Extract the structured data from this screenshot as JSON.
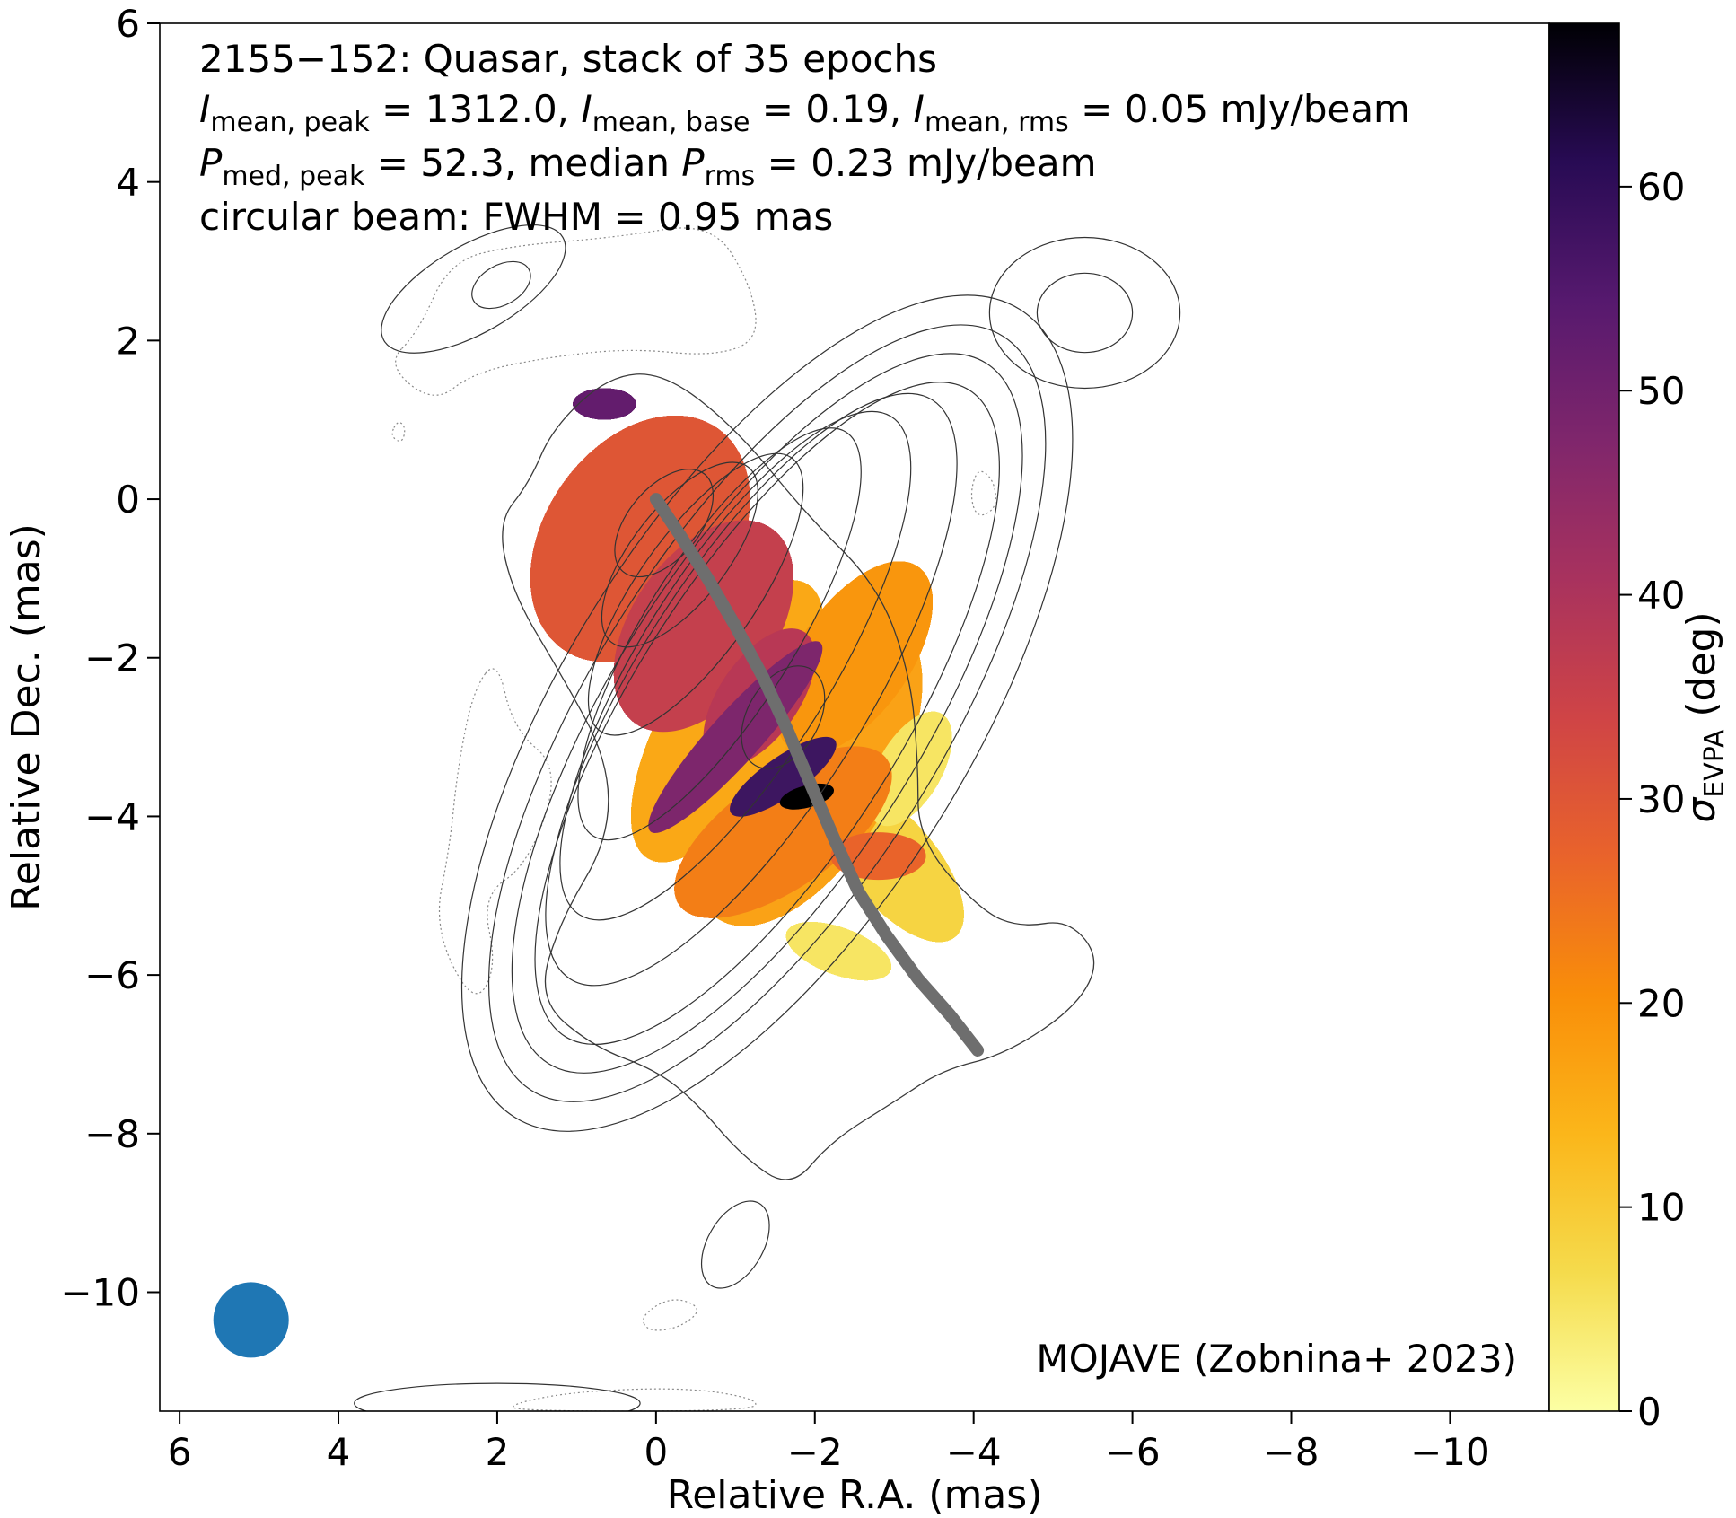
{
  "chart_data": {
    "type": "heatmap",
    "title": "2155−152: Quasar, stack of 35 epochs",
    "annotations": {
      "line2": {
        "a_sym": "I",
        "a_sub": "mean, peak",
        "a_val": " = 1312.0, ",
        "b_sym": "I",
        "b_sub": "mean, base",
        "b_val": " = 0.19, ",
        "c_sym": "I",
        "c_sub": "mean, rms",
        "c_val": " = 0.05 mJy/beam"
      },
      "line3": {
        "a_sym": "P",
        "a_sub": "med, peak",
        "a_val": " = 52.3, median ",
        "b_sym": "P",
        "b_sub": "rms",
        "b_val": " = 0.23 mJy/beam"
      },
      "line4": "circular beam: FWHM = 0.95 mas",
      "credit": "MOJAVE (Zobnina+ 2023)"
    },
    "xlabel": "Relative R.A. (mas)",
    "ylabel": "Relative Dec. (mas)",
    "colorbar_label": {
      "sym": "σ",
      "sub": "EVPA",
      "rest": " (deg)"
    },
    "x_range": [
      6.25,
      -11.25
    ],
    "y_range": [
      -11.5,
      6.0
    ],
    "x_ticks": [
      6,
      4,
      2,
      0,
      -2,
      -4,
      -6,
      -8,
      -10
    ],
    "x_tick_labels": [
      "6",
      "4",
      "2",
      "0",
      "−2",
      "−4",
      "−6",
      "−8",
      "−10"
    ],
    "y_ticks": [
      6,
      4,
      2,
      0,
      -2,
      -4,
      -6,
      -8,
      -10
    ],
    "y_tick_labels": [
      "6",
      "4",
      "2",
      "0",
      "−2",
      "−4",
      "−6",
      "−8",
      "−10"
    ],
    "colorbar_range": [
      0,
      68
    ],
    "colorbar_ticks": [
      0,
      10,
      20,
      30,
      40,
      50,
      60
    ],
    "colorbar_tick_labels": [
      "0",
      "10",
      "20",
      "30",
      "40",
      "50",
      "60"
    ],
    "colormap": "inferno_r",
    "ridge_line": {
      "color": "#6e6e6e",
      "points": [
        [
          0,
          0
        ],
        [
          -0.3,
          -0.45
        ],
        [
          -0.65,
          -1.0
        ],
        [
          -1.0,
          -1.6
        ],
        [
          -1.35,
          -2.25
        ],
        [
          -1.65,
          -2.9
        ],
        [
          -1.95,
          -3.6
        ],
        [
          -2.25,
          -4.3
        ],
        [
          -2.55,
          -4.95
        ],
        [
          -2.9,
          -5.5
        ],
        [
          -3.3,
          -6.05
        ],
        [
          -3.7,
          -6.5
        ],
        [
          -4.05,
          -6.95
        ]
      ]
    },
    "beam": {
      "ra": 5.1,
      "dec": -10.35,
      "fwhm": 0.95,
      "color": "#1f77b4"
    },
    "evpa_regions": [
      {
        "ra": -3.0,
        "dec": -4.6,
        "a": 1.2,
        "b": 0.55,
        "angle": 50,
        "value": 8
      },
      {
        "ra": -2.3,
        "dec": -5.7,
        "a": 0.7,
        "b": 0.3,
        "angle": 20,
        "value": 5
      },
      {
        "ra": -1.9,
        "dec": -3.4,
        "a": 2.2,
        "b": 1.1,
        "angle": -60,
        "value": 17
      },
      {
        "ra": -0.9,
        "dec": -2.8,
        "a": 2.0,
        "b": 0.8,
        "angle": -60,
        "value": 16
      },
      {
        "ra": -3.2,
        "dec": -3.4,
        "a": 0.8,
        "b": 0.4,
        "angle": -60,
        "value": 5
      },
      {
        "ra": -1.6,
        "dec": -4.2,
        "a": 1.6,
        "b": 0.7,
        "angle": -35,
        "value": 23
      },
      {
        "ra": -2.5,
        "dec": -2.0,
        "a": 1.4,
        "b": 0.7,
        "angle": -55,
        "value": 19
      },
      {
        "ra": -2.8,
        "dec": -4.5,
        "a": 0.6,
        "b": 0.3,
        "angle": 0,
        "value": 27
      },
      {
        "ra": 0.2,
        "dec": -0.5,
        "a": 1.7,
        "b": 1.2,
        "angle": -55,
        "value": 30
      },
      {
        "ra": -0.6,
        "dec": -1.6,
        "a": 1.5,
        "b": 0.9,
        "angle": -55,
        "value": 36
      },
      {
        "ra": -1.3,
        "dec": -2.5,
        "a": 1.0,
        "b": 0.5,
        "angle": -55,
        "value": 38
      },
      {
        "ra": -1.0,
        "dec": -3.0,
        "a": 1.6,
        "b": 0.32,
        "angle": -48,
        "value": 48
      },
      {
        "ra": -1.6,
        "dec": -3.5,
        "a": 0.8,
        "b": 0.25,
        "angle": -35,
        "value": 58
      },
      {
        "ra": -1.9,
        "dec": -3.75,
        "a": 0.35,
        "b": 0.14,
        "angle": -15,
        "value": 68
      },
      {
        "ra": 0.65,
        "dec": 1.2,
        "a": 0.4,
        "b": 0.2,
        "angle": 0,
        "value": 52
      }
    ],
    "contour_levels": [
      {
        "ra": -1.4,
        "dec": -2.7,
        "a": 6.0,
        "b": 2.55,
        "angle": -58
      },
      {
        "ra": -1.4,
        "dec": -2.7,
        "a": 5.6,
        "b": 2.2,
        "angle": -58
      },
      {
        "ra": -1.4,
        "dec": -2.7,
        "a": 5.2,
        "b": 1.95,
        "angle": -58
      },
      {
        "ra": -1.4,
        "dec": -2.7,
        "a": 4.8,
        "b": 1.7,
        "angle": -58
      },
      {
        "ra": -1.2,
        "dec": -2.4,
        "a": 4.3,
        "b": 1.45,
        "angle": -58
      },
      {
        "ra": -1.0,
        "dec": -2.1,
        "a": 3.7,
        "b": 1.2,
        "angle": -58
      },
      {
        "ra": -0.8,
        "dec": -1.7,
        "a": 3.0,
        "b": 0.95,
        "angle": -58
      },
      {
        "ra": -0.5,
        "dec": -1.2,
        "a": 2.1,
        "b": 0.75,
        "angle": -55
      },
      {
        "ra": -0.3,
        "dec": -0.7,
        "a": 1.4,
        "b": 0.6,
        "angle": -52
      },
      {
        "ra": -0.1,
        "dec": -0.3,
        "a": 0.8,
        "b": 0.45,
        "angle": -50
      },
      {
        "ra": -1.6,
        "dec": -2.75,
        "a": 0.7,
        "b": 0.45,
        "angle": -60
      },
      {
        "ra": -5.4,
        "dec": 2.35,
        "a": 1.2,
        "b": 0.95,
        "angle": 0
      },
      {
        "ra": -5.4,
        "dec": 2.35,
        "a": 0.6,
        "b": 0.5,
        "angle": 0
      },
      {
        "ra": 2.3,
        "dec": 2.65,
        "a": 1.3,
        "b": 0.55,
        "angle": -30
      },
      {
        "ra": 1.95,
        "dec": 2.7,
        "a": 0.4,
        "b": 0.25,
        "angle": -30
      },
      {
        "ra": -1.0,
        "dec": -9.4,
        "a": 0.6,
        "b": 0.35,
        "angle": -60
      },
      {
        "ra": 2.0,
        "dec": -11.4,
        "a": 1.8,
        "b": 0.25,
        "angle": 0
      }
    ],
    "outer_contour": [
      [
        1.6,
        0.2
      ],
      [
        1.3,
        0.9
      ],
      [
        0.6,
        1.55
      ],
      [
        -0.1,
        1.6
      ],
      [
        -1.0,
        0.9
      ],
      [
        -1.9,
        -0.2
      ],
      [
        -2.8,
        -1.1
      ],
      [
        -3.2,
        -2.2
      ],
      [
        -3.3,
        -3.3
      ],
      [
        -3.3,
        -4.3
      ],
      [
        -4.1,
        -5.2
      ],
      [
        -4.6,
        -5.4
      ],
      [
        -5.2,
        -5.3
      ],
      [
        -5.6,
        -5.8
      ],
      [
        -5.3,
        -6.4
      ],
      [
        -4.4,
        -7.0
      ],
      [
        -3.6,
        -7.2
      ],
      [
        -3.0,
        -7.6
      ],
      [
        -2.2,
        -8.1
      ],
      [
        -1.7,
        -8.7
      ],
      [
        -1.1,
        -8.3
      ],
      [
        -0.5,
        -7.6
      ],
      [
        0.0,
        -7.2
      ],
      [
        0.8,
        -6.9
      ],
      [
        1.5,
        -6.3
      ],
      [
        1.2,
        -5.3
      ],
      [
        0.6,
        -4.3
      ],
      [
        0.6,
        -3.3
      ],
      [
        1.2,
        -2.2
      ],
      [
        1.8,
        -1.2
      ],
      [
        2.0,
        -0.3
      ]
    ],
    "dotted_regions": [
      [
        [
          3.0,
          2.1
        ],
        [
          2.6,
          3.0
        ],
        [
          1.8,
          3.2
        ],
        [
          0.5,
          3.3
        ],
        [
          -0.7,
          3.5
        ],
        [
          -1.2,
          2.7
        ],
        [
          -1.3,
          2.0
        ],
        [
          -0.7,
          1.8
        ],
        [
          0.3,
          1.9
        ],
        [
          1.3,
          1.8
        ],
        [
          2.3,
          1.6
        ],
        [
          2.8,
          1.2
        ],
        [
          3.4,
          1.7
        ]
      ],
      [
        [
          2.0,
          -2.0
        ],
        [
          1.8,
          -2.9
        ],
        [
          1.2,
          -3.4
        ],
        [
          1.6,
          -4.6
        ],
        [
          2.2,
          -5.0
        ],
        [
          2.0,
          -5.9
        ],
        [
          2.3,
          -6.4
        ],
        [
          2.8,
          -5.4
        ],
        [
          2.6,
          -4.4
        ],
        [
          2.5,
          -3.4
        ],
        [
          2.3,
          -2.4
        ]
      ],
      [
        [
          -4.05,
          0.4
        ],
        [
          -4.25,
          0.25
        ],
        [
          -4.3,
          -0.1
        ],
        [
          -4.05,
          -0.25
        ],
        [
          -3.95,
          0.05
        ]
      ],
      [
        [
          3.25,
          1.0
        ],
        [
          3.15,
          0.9
        ],
        [
          3.2,
          0.7
        ],
        [
          3.35,
          0.8
        ]
      ],
      [
        [
          1.8,
          -11.4
        ],
        [
          1.0,
          -11.25
        ],
        [
          -0.4,
          -11.2
        ],
        [
          -1.3,
          -11.35
        ],
        [
          -1.2,
          -11.5
        ],
        [
          1.8,
          -11.5
        ]
      ],
      [
        [
          0.2,
          -10.3
        ],
        [
          -0.2,
          -10.05
        ],
        [
          -0.6,
          -10.2
        ],
        [
          -0.3,
          -10.45
        ],
        [
          0.1,
          -10.5
        ]
      ]
    ]
  }
}
